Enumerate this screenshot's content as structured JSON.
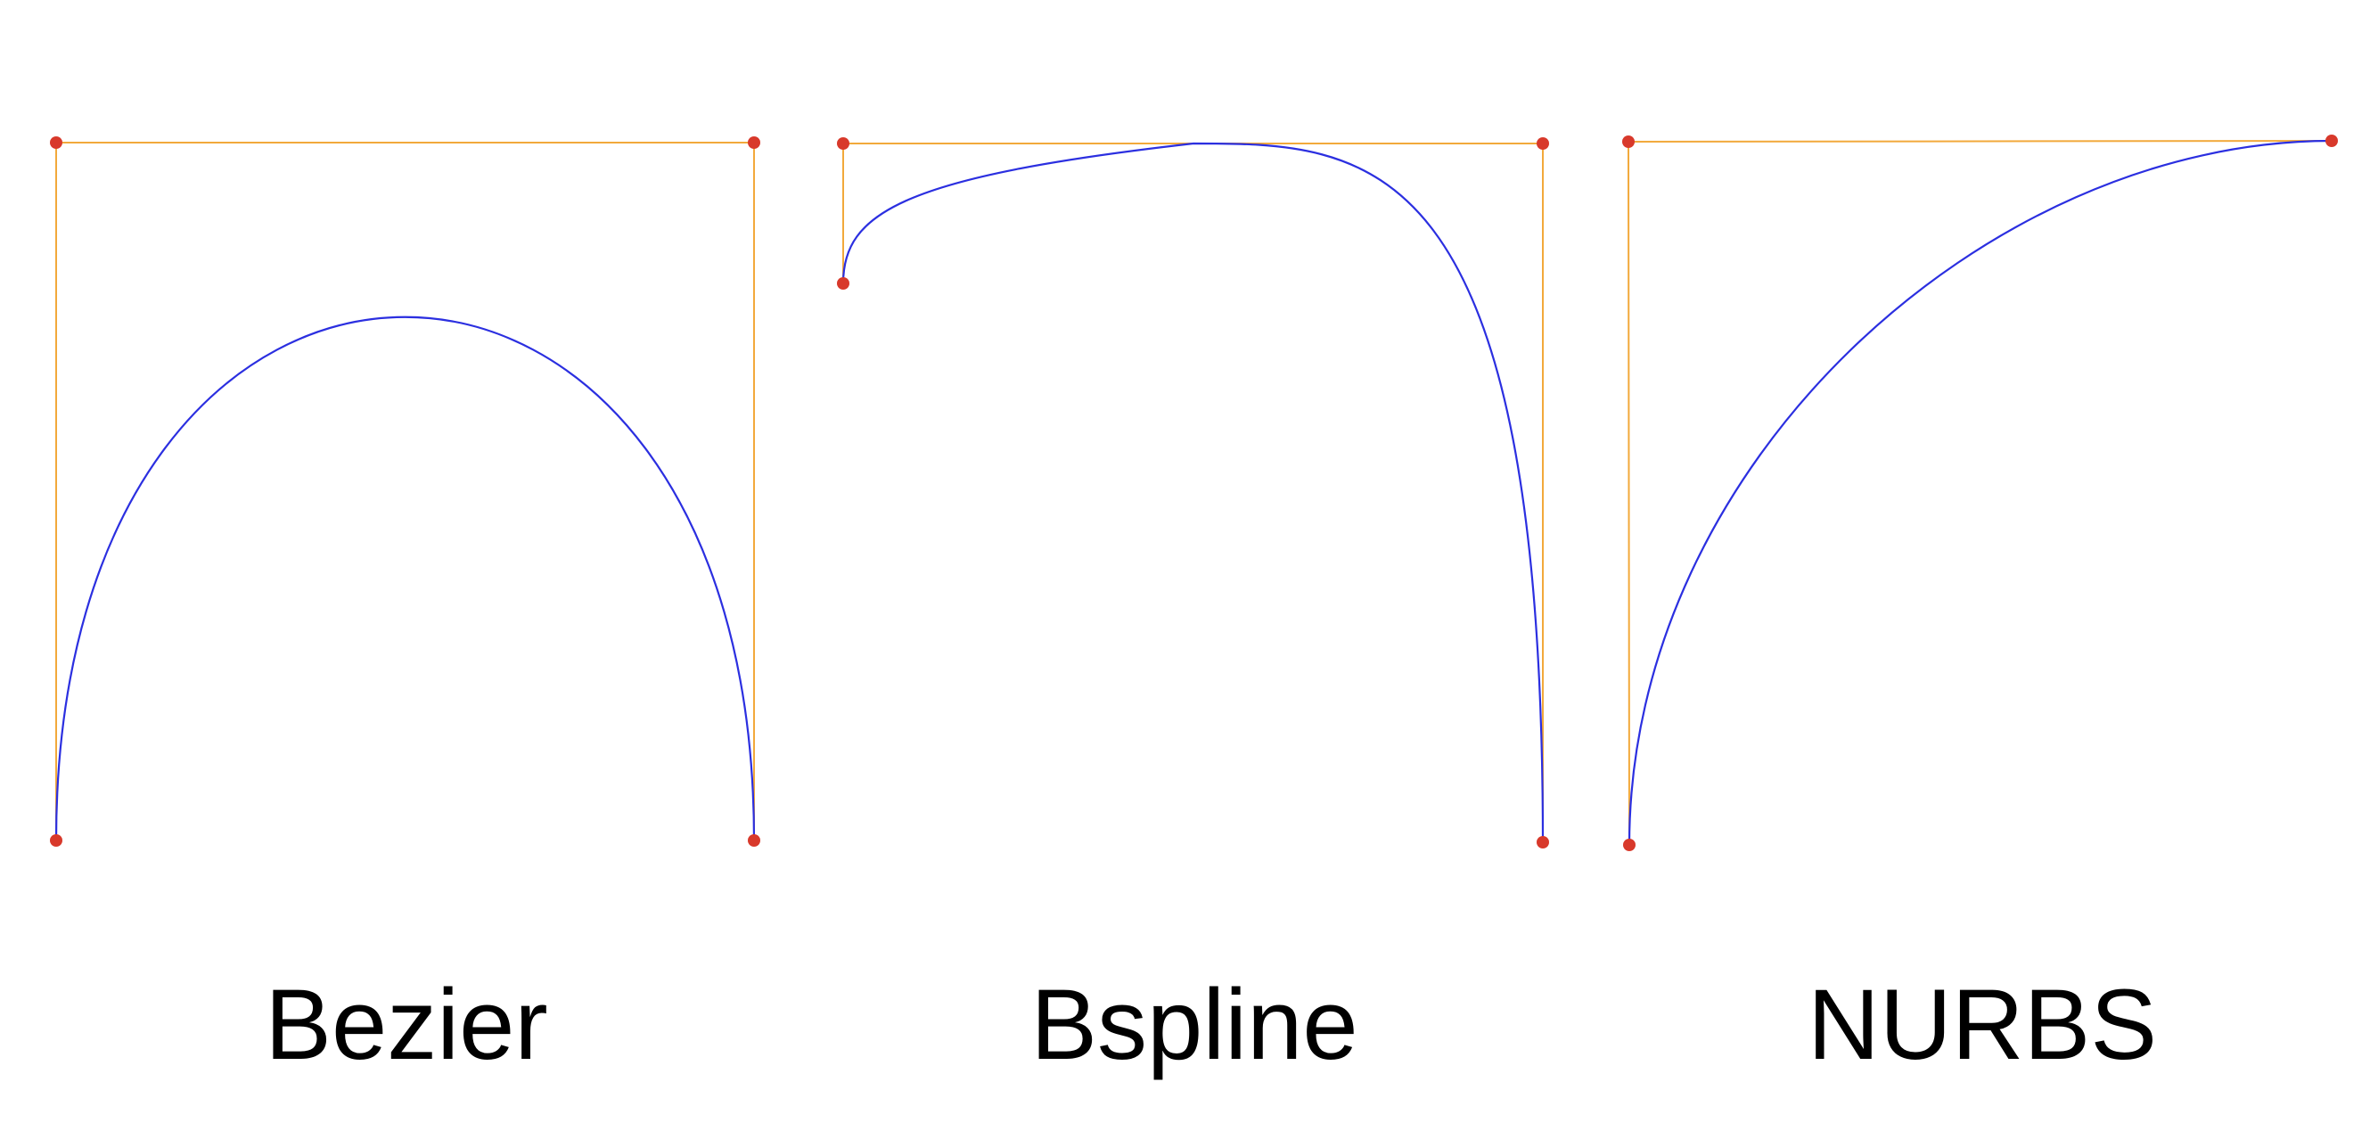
{
  "colors": {
    "background": "#ffffff",
    "control_polygon": "#f2a93b",
    "control_point": "#d8392b",
    "curve": "#2b2fe0",
    "label_text": "#000000"
  },
  "panels": [
    {
      "id": "bezier",
      "label": "Bezier"
    },
    {
      "id": "bspline",
      "label": "Bspline"
    },
    {
      "id": "nurbs",
      "label": "NURBS"
    }
  ]
}
